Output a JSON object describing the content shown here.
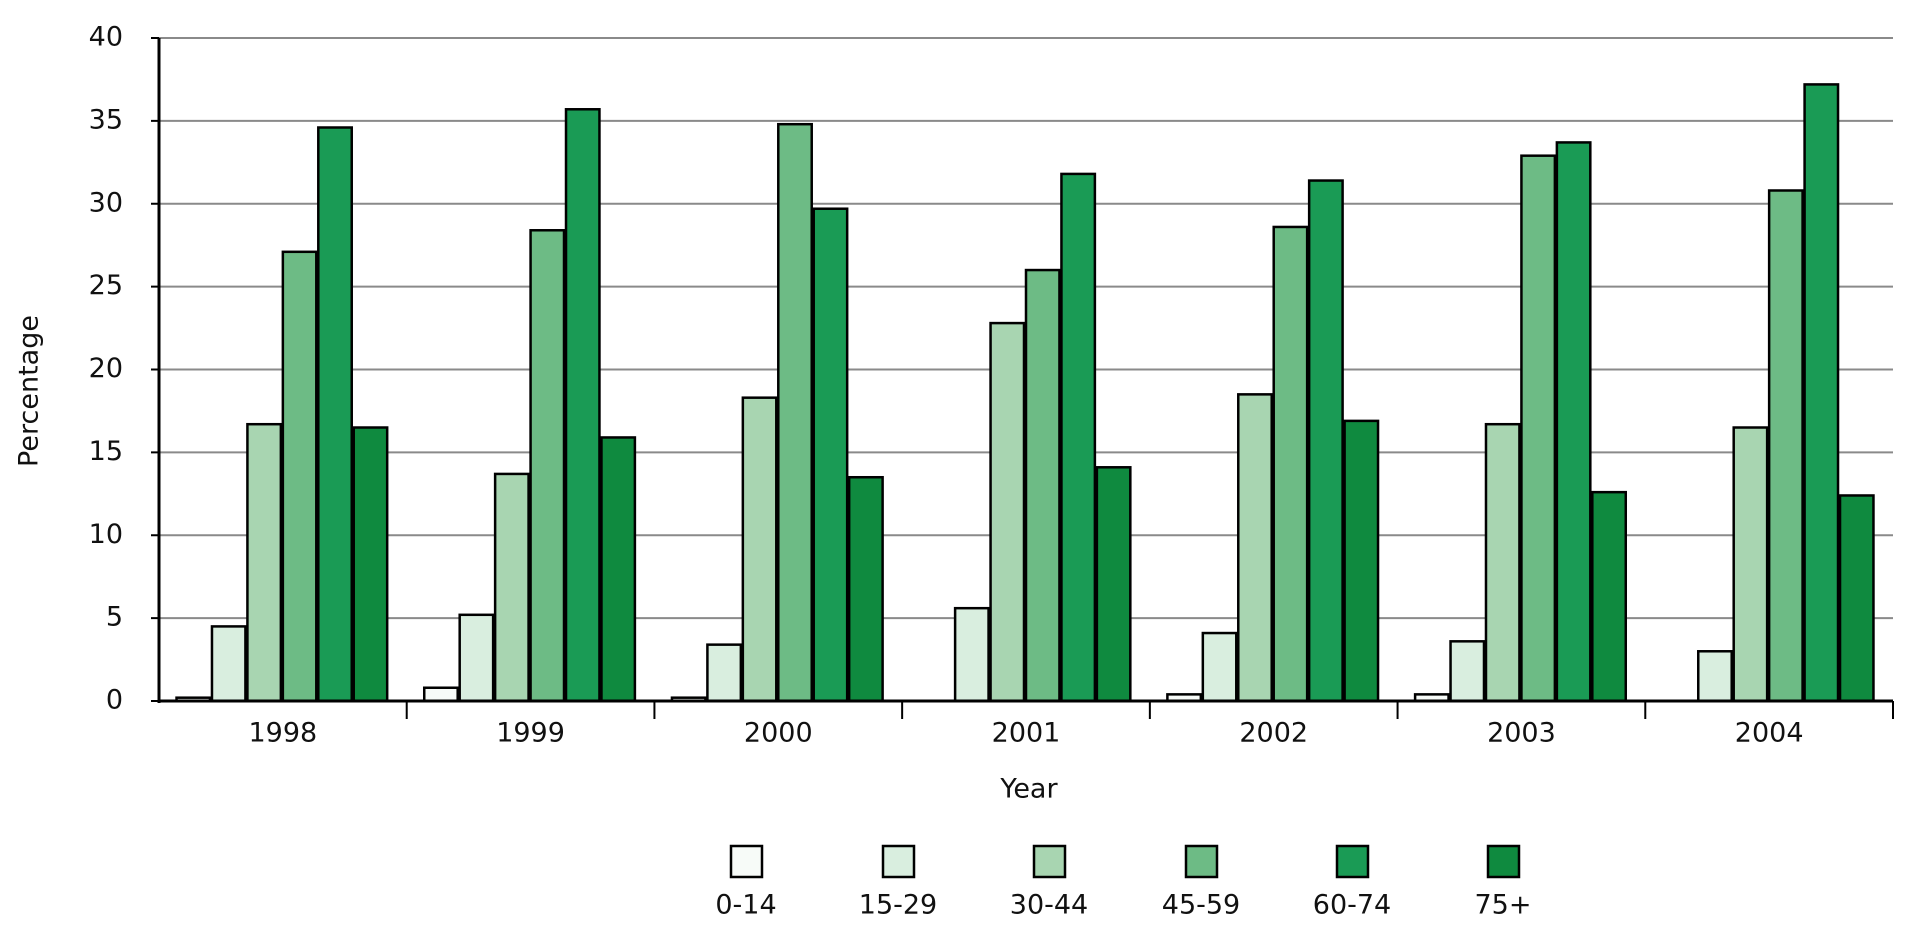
{
  "chart_data": {
    "type": "bar",
    "x_label": "Year",
    "y_label": "Percentage",
    "categories": [
      "1998",
      "1999",
      "2000",
      "2001",
      "2002",
      "2003",
      "2004"
    ],
    "series": [
      {
        "name": "0-14",
        "color": "#f7fbf8",
        "values": [
          0.2,
          0.8,
          0.2,
          0,
          0.4,
          0.4,
          0
        ]
      },
      {
        "name": "15-29",
        "color": "#d9eedf",
        "values": [
          4.5,
          5.2,
          3.4,
          5.6,
          4.1,
          3.6,
          3.0
        ]
      },
      {
        "name": "30-44",
        "color": "#a8d5b1",
        "values": [
          16.7,
          13.7,
          18.3,
          22.8,
          18.5,
          16.7,
          16.5
        ]
      },
      {
        "name": "45-59",
        "color": "#6dbb85",
        "values": [
          27.1,
          28.4,
          34.8,
          26.0,
          28.6,
          32.9,
          30.8
        ]
      },
      {
        "name": "60-74",
        "color": "#1a9b55",
        "values": [
          34.6,
          35.7,
          29.7,
          31.8,
          31.4,
          33.7,
          37.2
        ]
      },
      {
        "name": "75+",
        "color": "#0f8a3f",
        "values": [
          16.5,
          15.9,
          13.5,
          14.1,
          16.9,
          12.6,
          12.4
        ]
      }
    ],
    "ylim": [
      0,
      40
    ],
    "yticks": [
      0,
      5,
      10,
      15,
      20,
      25,
      30,
      35,
      40
    ],
    "grid": true,
    "legend": "bottom"
  }
}
